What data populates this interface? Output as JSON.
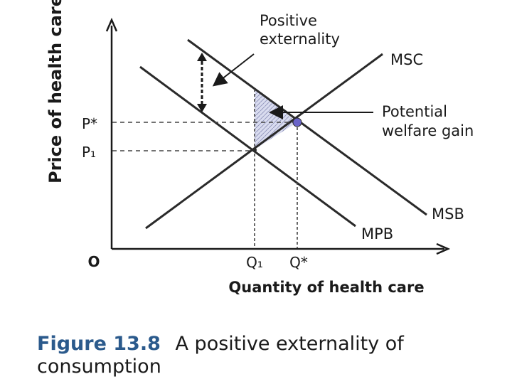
{
  "diagram": {
    "y_axis_label": "Price of health care ($)",
    "x_axis_label": "Quantity of health care",
    "origin_label": "O",
    "curves": {
      "msc": "MSC",
      "msb": "MSB",
      "mpb": "MPB"
    },
    "price_ticks": {
      "p_star": "P*",
      "p1": "P₁"
    },
    "quantity_ticks": {
      "q1": "Q₁",
      "q_star": "Q*"
    },
    "annotations": {
      "externality_line1": "Positive",
      "externality_line2": "externality",
      "welfare_line1": "Potential",
      "welfare_line2": "welfare gain"
    }
  },
  "caption": {
    "figure_number": "Figure 13.8",
    "title_part1": "A positive externality of",
    "title_part2": "consumption"
  }
}
